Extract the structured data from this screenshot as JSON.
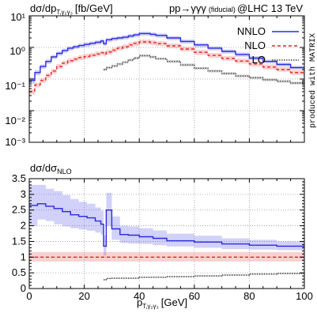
{
  "chart_data": [
    {
      "type": "line",
      "panel": "main",
      "ylabel": "dσ/dp",
      "ylabel_sub": "T,γ₂γ₃",
      "ylabel_unit": "[fb/GeV]",
      "process": "pp→γγγ",
      "process_note": "(fiducial)",
      "collider": "@LHC 13 TeV",
      "watermark": "produced with MATRIX",
      "yscale": "log",
      "ylim": [
        0.001,
        10
      ],
      "xlim": [
        0,
        100
      ],
      "grid": true,
      "legend_position": "top-right",
      "y_tick_labels": [
        "10¹",
        "10⁰",
        "10⁻¹",
        "10⁻²",
        "10⁻³"
      ],
      "x": [
        0,
        2,
        4,
        6,
        8,
        10,
        12,
        14,
        16,
        18,
        20,
        22,
        24,
        26,
        27,
        28,
        30,
        32,
        34,
        36,
        38,
        40,
        42,
        44,
        46,
        50,
        55,
        60,
        65,
        70,
        75,
        80,
        85,
        90,
        95,
        100
      ],
      "series": [
        {
          "name": "NNLO",
          "color": "#2a2ae0",
          "dash": "solid",
          "values": [
            0.09,
            0.16,
            0.25,
            0.36,
            0.5,
            0.65,
            0.8,
            0.95,
            1.05,
            1.15,
            1.25,
            1.35,
            1.45,
            1.6,
            1.3,
            1.75,
            1.9,
            2.0,
            2.1,
            2.3,
            2.5,
            2.75,
            2.75,
            2.6,
            2.4,
            2.0,
            1.55,
            1.2,
            0.95,
            0.75,
            0.6,
            0.46,
            0.36,
            0.29,
            0.23,
            0.18
          ],
          "band_low": [
            0.07,
            0.13,
            0.21,
            0.3,
            0.42,
            0.55,
            0.68,
            0.8,
            0.89,
            0.97,
            1.05,
            1.14,
            1.22,
            1.35,
            1.1,
            1.47,
            1.6,
            1.7,
            1.78,
            1.95,
            2.12,
            2.33,
            2.33,
            2.2,
            2.04,
            1.7,
            1.32,
            1.02,
            0.81,
            0.64,
            0.51,
            0.39,
            0.31,
            0.25,
            0.2,
            0.155
          ],
          "band_high": [
            0.11,
            0.19,
            0.29,
            0.42,
            0.58,
            0.75,
            0.92,
            1.09,
            1.21,
            1.32,
            1.44,
            1.55,
            1.67,
            1.84,
            1.5,
            2.01,
            2.18,
            2.3,
            2.42,
            2.64,
            2.87,
            3.16,
            3.16,
            2.99,
            2.76,
            2.3,
            1.78,
            1.38,
            1.09,
            0.86,
            0.69,
            0.53,
            0.41,
            0.33,
            0.26,
            0.21
          ]
        },
        {
          "name": "NLO",
          "color": "#e82020",
          "dash": "dashed",
          "values": [
            0.04,
            0.065,
            0.09,
            0.13,
            0.18,
            0.25,
            0.32,
            0.38,
            0.43,
            0.48,
            0.52,
            0.57,
            0.62,
            0.68,
            0.62,
            0.72,
            0.82,
            0.95,
            1.05,
            1.2,
            1.35,
            1.5,
            1.5,
            1.42,
            1.32,
            1.12,
            0.89,
            0.7,
            0.56,
            0.45,
            0.37,
            0.3,
            0.24,
            0.2,
            0.16,
            0.13
          ],
          "band_low": [
            0.033,
            0.054,
            0.075,
            0.108,
            0.15,
            0.21,
            0.27,
            0.32,
            0.36,
            0.4,
            0.44,
            0.48,
            0.52,
            0.57,
            0.52,
            0.6,
            0.69,
            0.8,
            0.88,
            1.01,
            1.13,
            1.26,
            1.26,
            1.19,
            1.11,
            0.94,
            0.75,
            0.59,
            0.47,
            0.38,
            0.31,
            0.25,
            0.2,
            0.17,
            0.135,
            0.11
          ],
          "band_high": [
            0.047,
            0.077,
            0.107,
            0.155,
            0.21,
            0.3,
            0.38,
            0.45,
            0.51,
            0.57,
            0.62,
            0.68,
            0.74,
            0.81,
            0.74,
            0.86,
            0.98,
            1.13,
            1.25,
            1.43,
            1.6,
            1.78,
            1.78,
            1.69,
            1.57,
            1.33,
            1.06,
            0.83,
            0.67,
            0.54,
            0.44,
            0.36,
            0.29,
            0.24,
            0.19,
            0.155
          ]
        },
        {
          "name": "LO",
          "color": "#444444",
          "dash": "dotted",
          "x": [
            27,
            28,
            30,
            32,
            34,
            36,
            38,
            40,
            42,
            44,
            46,
            50,
            55,
            60,
            65,
            70,
            75,
            80,
            85,
            90,
            95,
            100
          ],
          "values": [
            0.2,
            0.23,
            0.26,
            0.3,
            0.34,
            0.4,
            0.46,
            0.55,
            0.55,
            0.5,
            0.44,
            0.36,
            0.28,
            0.22,
            0.18,
            0.15,
            0.125,
            0.11,
            0.095,
            0.085,
            0.075,
            0.065
          ],
          "band_low": [
            0.18,
            0.21,
            0.235,
            0.27,
            0.31,
            0.36,
            0.41,
            0.49,
            0.49,
            0.45,
            0.4,
            0.32,
            0.25,
            0.2,
            0.16,
            0.135,
            0.112,
            0.099,
            0.085,
            0.076,
            0.067,
            0.058
          ],
          "band_high": [
            0.22,
            0.25,
            0.285,
            0.33,
            0.37,
            0.44,
            0.51,
            0.61,
            0.61,
            0.55,
            0.48,
            0.4,
            0.31,
            0.24,
            0.2,
            0.165,
            0.138,
            0.121,
            0.105,
            0.094,
            0.083,
            0.072
          ]
        }
      ]
    },
    {
      "type": "line",
      "panel": "ratio",
      "ylabel": "dσ/dσ",
      "ylabel_sub": "NLO",
      "xlabel": "p",
      "xlabel_sub": "T,γ₂γ₃",
      "xlabel_unit": "[GeV]",
      "ylim": [
        0,
        3.5
      ],
      "xlim": [
        0,
        100
      ],
      "grid": true,
      "y_ticks": [
        0,
        0.5,
        1,
        1.5,
        2,
        2.5,
        3,
        3.5
      ],
      "y_tick_labels": [
        "0",
        "0.5",
        "1",
        "1.5",
        "2",
        "2.5",
        "3",
        "3.5"
      ],
      "x_ticks": [
        0,
        20,
        40,
        60,
        80,
        100
      ],
      "x_tick_labels": [
        "0",
        "20",
        "40",
        "60",
        "80",
        "100"
      ],
      "x": [
        0,
        3,
        6,
        9,
        12,
        15,
        18,
        21,
        24,
        26,
        27,
        28,
        30,
        33,
        36,
        40,
        45,
        50,
        60,
        70,
        80,
        90,
        100
      ],
      "series": [
        {
          "name": "NNLO",
          "color": "#2a2ae0",
          "dash": "solid",
          "values": [
            2.65,
            2.7,
            2.62,
            2.55,
            2.45,
            2.35,
            2.3,
            2.25,
            2.15,
            2.05,
            1.35,
            2.5,
            1.9,
            1.72,
            1.7,
            1.65,
            1.6,
            1.52,
            1.48,
            1.42,
            1.38,
            1.35,
            1.33
          ],
          "band_low": [
            2.0,
            2.2,
            2.15,
            2.05,
            1.98,
            1.92,
            1.88,
            1.84,
            1.78,
            1.72,
            1.05,
            2.0,
            1.55,
            1.45,
            1.43,
            1.42,
            1.38,
            1.34,
            1.3,
            1.26,
            1.24,
            1.22,
            1.2
          ],
          "band_high": [
            3.3,
            3.3,
            3.18,
            3.1,
            2.98,
            2.85,
            2.76,
            2.7,
            2.58,
            2.48,
            1.7,
            3.05,
            2.3,
            2.0,
            1.98,
            1.92,
            1.85,
            1.75,
            1.68,
            1.6,
            1.55,
            1.5,
            1.47
          ]
        },
        {
          "name": "NLO",
          "color": "#e82020",
          "dash": "dashed",
          "values": [
            1.0,
            1.0,
            1.0,
            1.0,
            1.0,
            1.0,
            1.0,
            1.0,
            1.0,
            1.0,
            1.0,
            1.0,
            1.0,
            1.0,
            1.0,
            1.0,
            1.0,
            1.0,
            1.0,
            1.0,
            1.0,
            1.0,
            1.0
          ],
          "band_low": [
            0.86,
            0.86,
            0.86,
            0.86,
            0.86,
            0.86,
            0.86,
            0.86,
            0.86,
            0.86,
            0.86,
            0.86,
            0.86,
            0.86,
            0.86,
            0.86,
            0.86,
            0.86,
            0.86,
            0.86,
            0.86,
            0.86,
            0.86
          ],
          "band_high": [
            1.16,
            1.16,
            1.16,
            1.16,
            1.16,
            1.16,
            1.16,
            1.16,
            1.16,
            1.16,
            1.16,
            1.16,
            1.16,
            1.16,
            1.16,
            1.16,
            1.16,
            1.16,
            1.16,
            1.16,
            1.16,
            1.16,
            1.16
          ]
        },
        {
          "name": "LO",
          "color": "#444444",
          "dash": "dotted",
          "x": [
            27,
            28,
            30,
            40,
            50,
            60,
            70,
            80,
            90,
            100
          ],
          "values": [
            0.28,
            0.32,
            0.33,
            0.36,
            0.38,
            0.4,
            0.43,
            0.46,
            0.48,
            0.5
          ],
          "band_low": [
            0.26,
            0.3,
            0.31,
            0.34,
            0.36,
            0.38,
            0.41,
            0.44,
            0.46,
            0.48
          ],
          "band_high": [
            0.3,
            0.34,
            0.35,
            0.38,
            0.4,
            0.42,
            0.45,
            0.48,
            0.5,
            0.52
          ]
        }
      ]
    }
  ]
}
